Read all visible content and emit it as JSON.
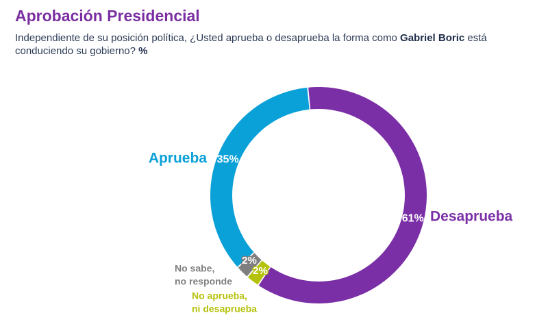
{
  "header": {
    "title": "Aprobación Presidencial",
    "question_pre": "Independiente de su posición política, ¿Usted aprueba o desaprueba la forma como ",
    "question_name": "Gabriel Boric",
    "question_post": " está conduciendo su gobierno? ",
    "question_unit": "%"
  },
  "colors": {
    "aprueba": "#0aa0d8",
    "desaprueba": "#7b2fa6",
    "no_sabe": "#7f7f7f",
    "ni": "#b5c20c"
  },
  "chart_data": {
    "type": "pie",
    "donut": true,
    "slices": [
      {
        "label": "Desaprueba",
        "value": 61,
        "display": "61%",
        "color": "#7b2fa6"
      },
      {
        "label": "No aprueba, ni desaprueba",
        "value": 2,
        "display": "2%",
        "color": "#b5c20c",
        "label_lines": [
          "No aprueba,",
          "ni desaprueba"
        ]
      },
      {
        "label": "No sabe, no responde",
        "value": 2,
        "display": "2%",
        "color": "#7f7f7f",
        "label_lines": [
          "No sabe,",
          "no responde"
        ]
      },
      {
        "label": "Aprueba",
        "value": 35,
        "display": "35%",
        "color": "#0aa0d8"
      }
    ]
  }
}
